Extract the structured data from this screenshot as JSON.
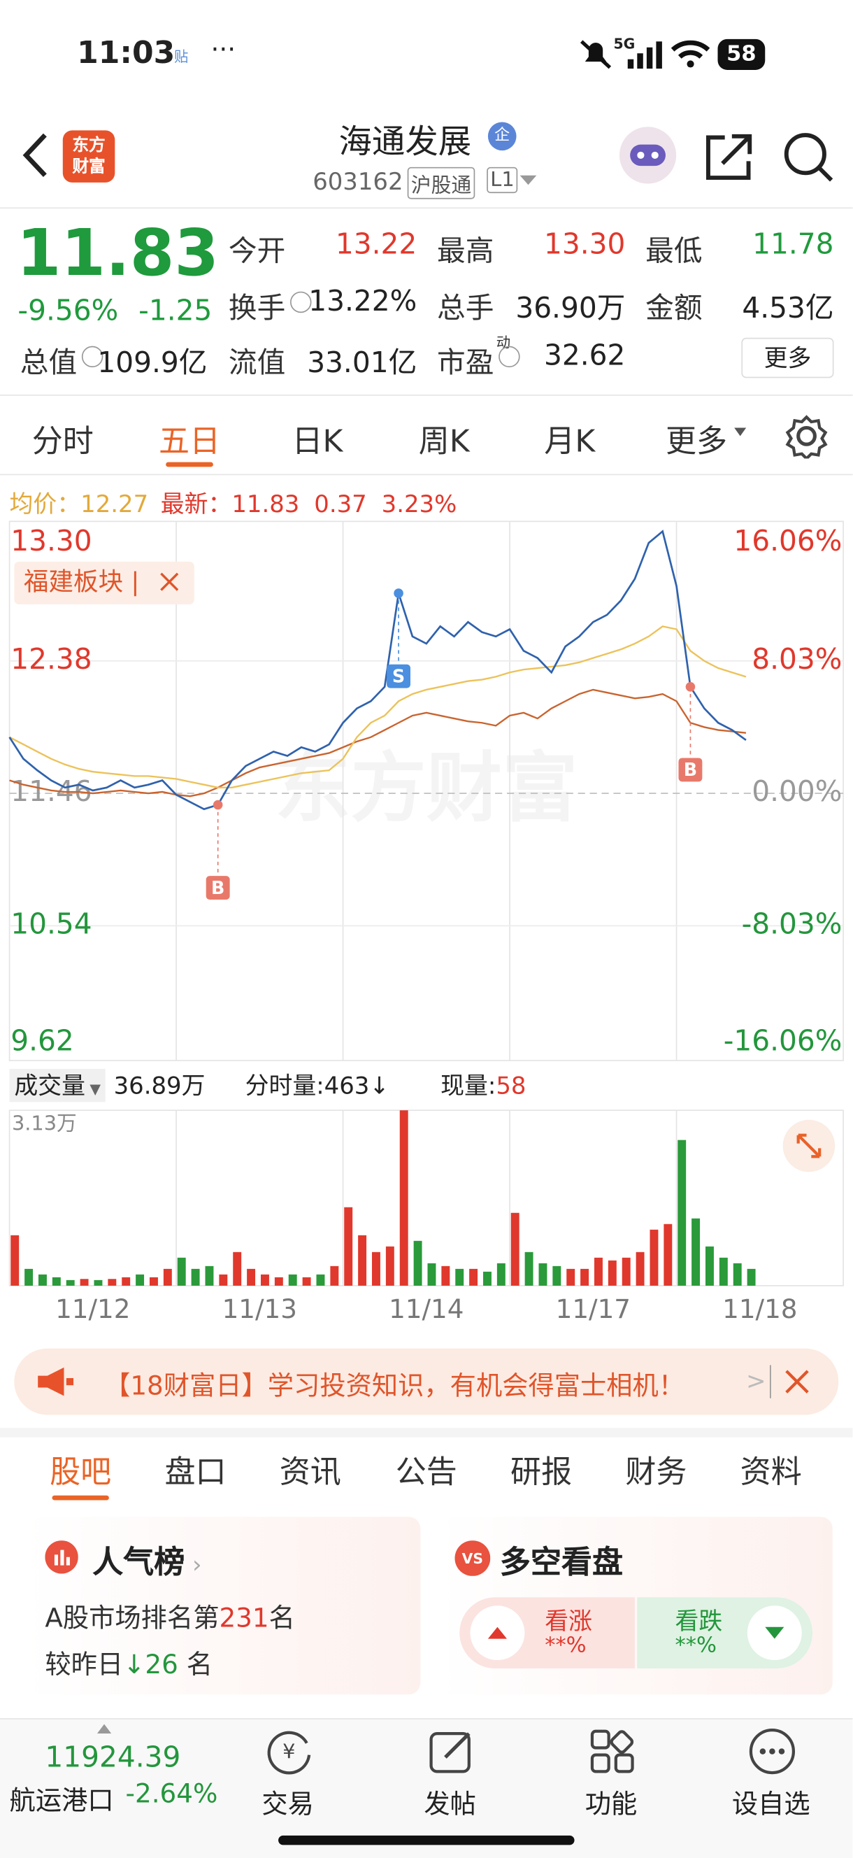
{
  "status_bar": {
    "time": "11:03",
    "app_badge": "贴",
    "network": "5G",
    "battery": "58"
  },
  "header": {
    "logo": [
      "东方",
      "财富"
    ],
    "title": "海通发展",
    "badge": "企",
    "code": "603162",
    "tags": [
      "沪股通",
      "L1"
    ]
  },
  "quote": {
    "price": "11.83",
    "change_pct": "-9.56%",
    "change": "-1.25",
    "color": "#1f9a3c",
    "fields": [
      {
        "label": "今开",
        "value": "13.22",
        "color": "#e0382c"
      },
      {
        "label": "最高",
        "value": "13.30",
        "color": "#e0382c"
      },
      {
        "label": "最低",
        "value": "11.78",
        "color": "#1f9a3c"
      },
      {
        "label": "换手",
        "value": "13.22%",
        "info": true
      },
      {
        "label": "总手",
        "value": "36.90万"
      },
      {
        "label": "金额",
        "value": "4.53亿"
      },
      {
        "label": "总值",
        "value": "109.9亿",
        "info": true
      },
      {
        "label": "流值",
        "value": "33.01亿"
      },
      {
        "label": "市盈",
        "sup": "动",
        "value": "32.62",
        "info": true
      }
    ],
    "more": "更多"
  },
  "chart_tabs": {
    "items": [
      "分时",
      "五日",
      "日K",
      "周K",
      "月K",
      "更多"
    ],
    "active": 1
  },
  "legend": {
    "avg_label": "均价：",
    "avg": "12.27",
    "latest_label": "最新：",
    "latest": "11.83",
    "diff": "0.37",
    "diff_pct": "3.23%"
  },
  "chart_data": [
    {
      "type": "line",
      "watermark": "东方财富",
      "tag": "福建板块 |",
      "x": [
        0,
        1,
        2,
        3,
        4,
        5,
        6,
        7,
        8,
        9,
        10,
        11,
        12,
        13,
        14,
        15,
        16,
        17,
        18,
        19,
        20,
        21,
        22,
        23,
        24,
        25,
        26,
        27,
        28,
        29,
        30,
        31,
        32,
        33,
        34,
        35,
        36,
        37,
        38,
        39,
        40,
        41,
        42,
        43,
        44,
        45,
        46,
        47,
        48,
        49,
        50,
        51,
        52,
        53
      ],
      "xlim": [
        0,
        60
      ],
      "xticks": [
        {
          "value": 6,
          "label": "11/12"
        },
        {
          "value": 18,
          "label": "11/13"
        },
        {
          "value": 30,
          "label": "11/14"
        },
        {
          "value": 42,
          "label": "11/17"
        },
        {
          "value": 54,
          "label": "11/18"
        }
      ],
      "ylim": [
        9.62,
        13.3
      ],
      "yticks": [
        {
          "value": 13.3,
          "label": "13.30"
        },
        12.38,
        11.46,
        10.54,
        9.62
      ],
      "y2lim": [
        -16.06,
        16.06
      ],
      "y2ticks": [
        {
          "value": 16.06,
          "label": "16.06%"
        },
        {
          "value": 8.03,
          "label": "8.03%"
        },
        {
          "value": 0,
          "label": "0.00%"
        },
        {
          "value": -8.03,
          "label": "-8.03%"
        },
        {
          "value": -16.06,
          "label": "-16.06%"
        }
      ],
      "grid": true,
      "series": [
        {
          "name": "价格",
          "color": "#2f62ad",
          "values": [
            11.85,
            11.7,
            11.62,
            11.55,
            11.5,
            11.52,
            11.48,
            11.5,
            11.55,
            11.5,
            11.52,
            11.55,
            11.45,
            11.4,
            11.35,
            11.38,
            11.55,
            11.65,
            11.7,
            11.75,
            11.72,
            11.78,
            11.75,
            11.8,
            11.95,
            12.05,
            12.1,
            12.2,
            12.85,
            12.55,
            12.5,
            12.62,
            12.55,
            12.65,
            12.58,
            12.55,
            12.6,
            12.45,
            12.4,
            12.3,
            12.48,
            12.55,
            12.65,
            12.7,
            12.8,
            12.95,
            13.2,
            13.28,
            12.9,
            12.2,
            12.05,
            11.95,
            11.9,
            11.83
          ]
        },
        {
          "name": "均价",
          "color": "#ecc25a",
          "values": [
            11.85,
            11.8,
            11.75,
            11.7,
            11.66,
            11.63,
            11.61,
            11.6,
            11.59,
            11.58,
            11.58,
            11.57,
            11.56,
            11.54,
            11.52,
            11.5,
            11.5,
            11.52,
            11.54,
            11.56,
            11.58,
            11.6,
            11.61,
            11.62,
            11.7,
            11.85,
            11.95,
            12.0,
            12.1,
            12.15,
            12.18,
            12.2,
            12.22,
            12.24,
            12.25,
            12.27,
            12.3,
            12.32,
            12.33,
            12.34,
            12.35,
            12.37,
            12.4,
            12.43,
            12.46,
            12.5,
            12.55,
            12.62,
            12.6,
            12.45,
            12.38,
            12.33,
            12.3,
            12.27
          ]
        },
        {
          "name": "福建板块",
          "color": "#c9642f",
          "values": [
            11.55,
            11.52,
            11.5,
            11.48,
            11.47,
            11.47,
            11.46,
            11.47,
            11.48,
            11.47,
            11.46,
            11.47,
            11.45,
            11.44,
            11.46,
            11.5,
            11.55,
            11.6,
            11.64,
            11.66,
            11.68,
            11.7,
            11.72,
            11.74,
            11.78,
            11.82,
            11.85,
            11.9,
            11.95,
            12.0,
            12.02,
            12.0,
            11.98,
            11.96,
            11.95,
            11.93,
            12.0,
            12.02,
            11.98,
            12.05,
            12.1,
            12.15,
            12.18,
            12.16,
            12.14,
            12.12,
            12.13,
            12.15,
            12.1,
            11.95,
            11.92,
            11.9,
            11.89,
            11.88
          ]
        }
      ],
      "markers": [
        {
          "label": "S",
          "x": 28,
          "color": "#4a8fe0"
        },
        {
          "label": "B",
          "x": 15,
          "color": "#e8796a"
        },
        {
          "label": "B",
          "x": 49,
          "color": "#e8796a"
        }
      ]
    },
    {
      "type": "bar",
      "title": "成交量",
      "total": "36.89万",
      "tick_volume": "分时量:463↓",
      "current_label": "现量:",
      "current": "58",
      "x": [
        0,
        1,
        2,
        3,
        4,
        5,
        6,
        7,
        8,
        9,
        10,
        11,
        12,
        13,
        14,
        15,
        16,
        17,
        18,
        19,
        20,
        21,
        22,
        23,
        24,
        25,
        26,
        27,
        28,
        29,
        30,
        31,
        32,
        33,
        34,
        35,
        36,
        37,
        38,
        39,
        40,
        41,
        42,
        43,
        44,
        45,
        46,
        47,
        48,
        49,
        50,
        51,
        52,
        53
      ],
      "xlim": [
        0,
        60
      ],
      "ylim": [
        0,
        3.13
      ],
      "yticks": [
        {
          "value": 3.13,
          "label": "3.13万"
        }
      ],
      "up_color": "#e0382c",
      "down_color": "#2a9a3a",
      "values": [
        0.9,
        0.3,
        0.2,
        0.15,
        0.1,
        0.12,
        0.1,
        0.12,
        0.15,
        0.2,
        0.15,
        0.3,
        0.5,
        0.3,
        0.35,
        0.2,
        0.6,
        0.3,
        0.2,
        0.15,
        0.2,
        0.15,
        0.2,
        0.35,
        1.4,
        0.9,
        0.6,
        0.7,
        3.13,
        0.8,
        0.4,
        0.35,
        0.3,
        0.3,
        0.25,
        0.4,
        1.3,
        0.6,
        0.4,
        0.35,
        0.3,
        0.3,
        0.5,
        0.45,
        0.5,
        0.6,
        1.0,
        1.1,
        2.6,
        1.2,
        0.7,
        0.5,
        0.4,
        0.3
      ]
    }
  ],
  "banner": {
    "text": "【18财富日】学习投资知识，有机会得富士相机！",
    "arrow": ">"
  },
  "section_tabs": {
    "items": [
      "股吧",
      "盘口",
      "资讯",
      "公告",
      "研报",
      "财务",
      "资料"
    ],
    "active": 0
  },
  "popularity": {
    "title": "人气榜",
    "rank_prefix": "A股市场排名第",
    "rank": "231",
    "rank_suffix": "名",
    "delta_prefix": "较昨日",
    "delta": "26",
    "delta_suffix": "名"
  },
  "bull_bear": {
    "title": "多空看盘",
    "bull_label": "看涨",
    "bull_value": "**%",
    "bear_label": "看跌",
    "bear_value": "**%"
  },
  "bottom_bar": {
    "index_value": "11924.39",
    "index_name": "航运港口",
    "index_change": "-2.64%",
    "nav": [
      "交易",
      "发帖",
      "功能",
      "设自选"
    ]
  }
}
